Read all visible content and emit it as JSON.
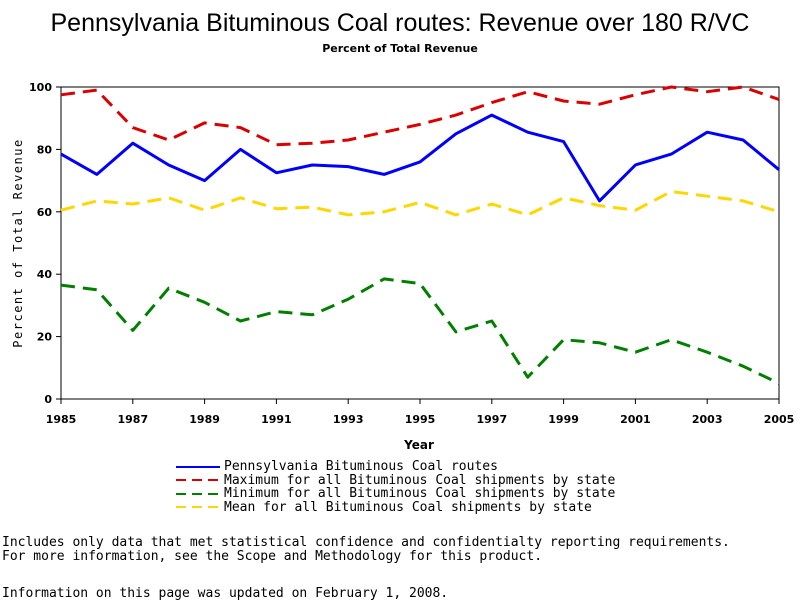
{
  "chart_data": {
    "type": "line",
    "title": "Pennsylvania Bituminous Coal routes: Revenue over 180 R/VC",
    "subtitle": "Percent of Total Revenue",
    "xlabel": "Year",
    "ylabel": "Percent of Total Revenue",
    "xlim": [
      1985,
      2005
    ],
    "ylim": [
      0,
      100
    ],
    "x_ticks": [
      "1985",
      "1987",
      "1989",
      "1991",
      "1993",
      "1995",
      "1997",
      "1999",
      "2001",
      "2003",
      "2005"
    ],
    "y_ticks": [
      "0",
      "20",
      "40",
      "60",
      "80",
      "100"
    ],
    "x": [
      1985,
      1986,
      1987,
      1988,
      1989,
      1990,
      1991,
      1992,
      1993,
      1994,
      1995,
      1996,
      1997,
      1998,
      1999,
      2000,
      2001,
      2002,
      2003,
      2004,
      2005
    ],
    "series": [
      {
        "name": "Pennsylvania Bituminous Coal routes",
        "color": "#0000ff",
        "dash": "solid",
        "values": [
          78.5,
          72,
          82,
          75,
          70,
          80,
          72.5,
          75,
          74.5,
          72,
          76,
          85,
          91,
          85.5,
          82.5,
          63.5,
          75,
          78.5,
          85.5,
          83,
          73.5
        ]
      },
      {
        "name": "Maximum for all Bituminous Coal shipments by state",
        "color": "#dd0000",
        "dash": "dashed",
        "values": [
          97.5,
          99,
          87,
          83,
          88.5,
          87,
          81.5,
          82,
          83,
          85.5,
          88,
          91,
          95,
          98.5,
          95.5,
          94.5,
          97.5,
          100,
          98.5,
          100,
          96
        ]
      },
      {
        "name": "Minimum for all Bituminous Coal shipments by state",
        "color": "#008000",
        "dash": "dashed",
        "values": [
          36.5,
          35,
          22,
          35.5,
          31,
          25,
          28,
          27,
          32,
          38.5,
          37,
          21.5,
          25,
          7,
          19,
          18,
          15,
          19,
          15,
          10.5,
          5
        ]
      },
      {
        "name": "Mean for all Bituminous Coal shipments by state",
        "color": "#ffd700",
        "dash": "dashed",
        "values": [
          60.5,
          63.5,
          62.5,
          64.5,
          60.5,
          64.5,
          61,
          61.5,
          59,
          60,
          63,
          59,
          62.5,
          59,
          64.5,
          62,
          60.5,
          66.5,
          65,
          63.5,
          60
        ]
      }
    ]
  },
  "notes": [
    "Includes only data that met statistical confidence and confidentialty reporting requirements.",
    "For more information, see the Scope and Methodology for this product."
  ],
  "updated": "Information on this page was updated on February 1, 2008."
}
